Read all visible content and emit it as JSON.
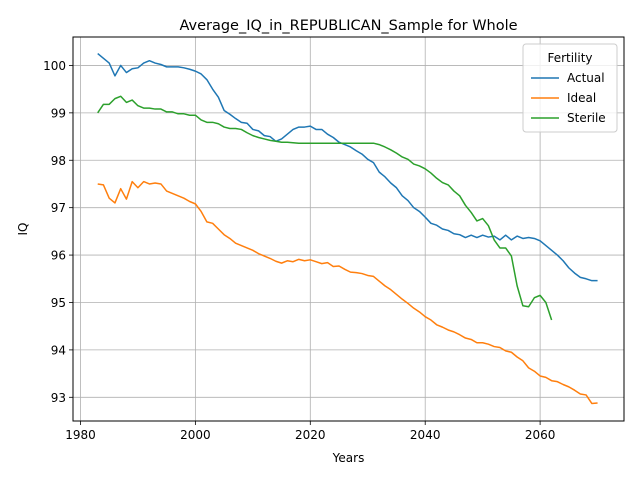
{
  "chart_data": {
    "type": "line",
    "title": "Average_IQ_in_REPUBLICAN_Sample for Whole",
    "xlabel": "Years",
    "ylabel": "IQ",
    "xlim": [
      1978.7,
      2074.6
    ],
    "ylim": [
      92.5,
      100.6
    ],
    "xticks": [
      1980,
      2000,
      2020,
      2040,
      2060
    ],
    "yticks": [
      93,
      94,
      95,
      96,
      97,
      98,
      99,
      100
    ],
    "grid": true,
    "legend": {
      "title": "Fertility",
      "position": "top-right"
    },
    "colors": {
      "Actual": "#1f77b4",
      "Ideal": "#ff7f0e",
      "Sterile": "#2ca02c"
    },
    "series": [
      {
        "name": "Actual",
        "x": [
          1983,
          1984,
          1985,
          1986,
          1987,
          1988,
          1989,
          1990,
          1991,
          1992,
          1993,
          1994,
          1995,
          1996,
          1997,
          1998,
          1999,
          2000,
          2001,
          2002,
          2003,
          2004,
          2005,
          2006,
          2007,
          2008,
          2009,
          2010,
          2011,
          2012,
          2013,
          2014,
          2015,
          2016,
          2017,
          2018,
          2019,
          2020,
          2021,
          2022,
          2023,
          2024,
          2025,
          2026,
          2027,
          2028,
          2029,
          2030,
          2031,
          2032,
          2033,
          2034,
          2035,
          2036,
          2037,
          2038,
          2039,
          2040,
          2041,
          2042,
          2043,
          2044,
          2045,
          2046,
          2047,
          2048,
          2049,
          2050,
          2051,
          2052,
          2053,
          2054,
          2055,
          2056,
          2057,
          2058,
          2059,
          2060,
          2061,
          2062,
          2063,
          2064,
          2065,
          2066,
          2067,
          2068,
          2069,
          2070
        ],
        "y": [
          100.25,
          100.15,
          100.05,
          99.78,
          100.0,
          99.85,
          99.93,
          99.95,
          100.05,
          100.1,
          100.05,
          100.02,
          99.97,
          99.97,
          99.97,
          99.95,
          99.92,
          99.88,
          99.82,
          99.7,
          99.5,
          99.33,
          99.05,
          98.97,
          98.88,
          98.8,
          98.78,
          98.65,
          98.62,
          98.52,
          98.5,
          98.4,
          98.45,
          98.55,
          98.65,
          98.7,
          98.7,
          98.72,
          98.65,
          98.65,
          98.55,
          98.48,
          98.38,
          98.33,
          98.28,
          98.2,
          98.13,
          98.02,
          97.95,
          97.75,
          97.65,
          97.52,
          97.42,
          97.25,
          97.15,
          97.0,
          96.92,
          96.8,
          96.67,
          96.63,
          96.55,
          96.52,
          96.45,
          96.43,
          96.37,
          96.42,
          96.37,
          96.42,
          96.38,
          96.4,
          96.32,
          96.42,
          96.32,
          96.4,
          96.35,
          96.37,
          96.35,
          96.3,
          96.2,
          96.1,
          96.0,
          95.88,
          95.73,
          95.62,
          95.53,
          95.5,
          95.46,
          95.46
        ]
      },
      {
        "name": "Ideal",
        "x": [
          1983,
          1984,
          1985,
          1986,
          1987,
          1988,
          1989,
          1990,
          1991,
          1992,
          1993,
          1994,
          1995,
          1996,
          1997,
          1998,
          1999,
          2000,
          2001,
          2002,
          2003,
          2004,
          2005,
          2006,
          2007,
          2008,
          2009,
          2010,
          2011,
          2012,
          2013,
          2014,
          2015,
          2016,
          2017,
          2018,
          2019,
          2020,
          2021,
          2022,
          2023,
          2024,
          2025,
          2026,
          2027,
          2028,
          2029,
          2030,
          2031,
          2032,
          2033,
          2034,
          2035,
          2036,
          2037,
          2038,
          2039,
          2040,
          2041,
          2042,
          2043,
          2044,
          2045,
          2046,
          2047,
          2048,
          2049,
          2050,
          2051,
          2052,
          2053,
          2054,
          2055,
          2056,
          2057,
          2058,
          2059,
          2060,
          2061,
          2062,
          2063,
          2064,
          2065,
          2066,
          2067,
          2068,
          2069,
          2070
        ],
        "y": [
          97.5,
          97.48,
          97.2,
          97.1,
          97.4,
          97.18,
          97.55,
          97.42,
          97.55,
          97.5,
          97.52,
          97.5,
          97.35,
          97.3,
          97.25,
          97.2,
          97.13,
          97.08,
          96.92,
          96.7,
          96.67,
          96.55,
          96.43,
          96.35,
          96.25,
          96.2,
          96.15,
          96.1,
          96.03,
          95.98,
          95.93,
          95.87,
          95.83,
          95.88,
          95.86,
          95.91,
          95.88,
          95.9,
          95.86,
          95.82,
          95.84,
          95.76,
          95.77,
          95.7,
          95.64,
          95.63,
          95.61,
          95.57,
          95.55,
          95.45,
          95.35,
          95.27,
          95.17,
          95.07,
          94.98,
          94.88,
          94.8,
          94.7,
          94.63,
          94.53,
          94.48,
          94.42,
          94.38,
          94.32,
          94.25,
          94.22,
          94.15,
          94.15,
          94.12,
          94.07,
          94.05,
          93.98,
          93.95,
          93.85,
          93.77,
          93.62,
          93.55,
          93.45,
          93.42,
          93.35,
          93.33,
          93.27,
          93.22,
          93.15,
          93.07,
          93.05,
          92.87,
          92.88
        ]
      },
      {
        "name": "Sterile",
        "x": [
          1983,
          1984,
          1985,
          1986,
          1987,
          1988,
          1989,
          1990,
          1991,
          1992,
          1993,
          1994,
          1995,
          1996,
          1997,
          1998,
          1999,
          2000,
          2001,
          2002,
          2003,
          2004,
          2005,
          2006,
          2007,
          2008,
          2009,
          2010,
          2011,
          2012,
          2013,
          2014,
          2015,
          2016,
          2017,
          2018,
          2019,
          2020,
          2021,
          2022,
          2023,
          2024,
          2025,
          2026,
          2027,
          2028,
          2029,
          2030,
          2031,
          2032,
          2033,
          2034,
          2035,
          2036,
          2037,
          2038,
          2039,
          2040,
          2041,
          2042,
          2043,
          2044,
          2045,
          2046,
          2047,
          2048,
          2049,
          2050,
          2051,
          2052,
          2053,
          2054,
          2055,
          2056,
          2057,
          2058,
          2059,
          2060,
          2061,
          2062
        ],
        "y": [
          99.0,
          99.18,
          99.18,
          99.3,
          99.35,
          99.22,
          99.27,
          99.15,
          99.1,
          99.1,
          99.08,
          99.08,
          99.02,
          99.02,
          98.98,
          98.98,
          98.95,
          98.95,
          98.85,
          98.8,
          98.8,
          98.77,
          98.7,
          98.67,
          98.67,
          98.65,
          98.58,
          98.52,
          98.48,
          98.45,
          98.42,
          98.4,
          98.38,
          98.38,
          98.37,
          98.36,
          98.36,
          98.36,
          98.36,
          98.36,
          98.36,
          98.36,
          98.36,
          98.36,
          98.36,
          98.36,
          98.36,
          98.36,
          98.36,
          98.33,
          98.28,
          98.22,
          98.15,
          98.07,
          98.02,
          97.92,
          97.88,
          97.82,
          97.73,
          97.62,
          97.53,
          97.48,
          97.35,
          97.25,
          97.05,
          96.9,
          96.72,
          96.77,
          96.62,
          96.32,
          96.15,
          96.15,
          95.98,
          95.35,
          94.93,
          94.91,
          95.1,
          95.15,
          95.0,
          94.63
        ]
      }
    ]
  }
}
